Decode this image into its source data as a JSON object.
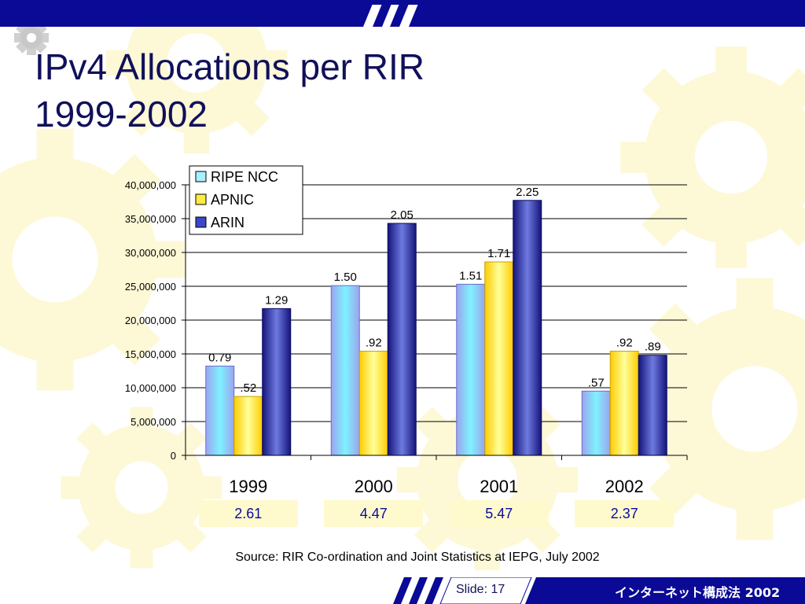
{
  "slide": {
    "title_line1": "IPv4 Allocations per RIR",
    "title_line2": "1999-2002",
    "source": "Source: RIR Co-ordination and Joint Statistics at IEPG,  July 2002",
    "slide_number": "Slide: 17",
    "footer_text": "インターネット構成法 2002",
    "colors": {
      "title": "#10105a",
      "top_bar": "#0a0a96",
      "totals_bg": "#fffacd",
      "totals_text": "#0a0aa0"
    }
  },
  "chart_data": {
    "type": "bar",
    "categories": [
      "1999",
      "2000",
      "2001",
      "2002"
    ],
    "ylim": [
      0,
      40000000
    ],
    "yticks": [
      {
        "value": 0,
        "label": "0"
      },
      {
        "value": 5000000,
        "label": "5,000,000"
      },
      {
        "value": 10000000,
        "label": "10,000,000"
      },
      {
        "value": 15000000,
        "label": "15,000,000"
      },
      {
        "value": 20000000,
        "label": "20,000,000"
      },
      {
        "value": 25000000,
        "label": "25,000,000"
      },
      {
        "value": 30000000,
        "label": "30,000,000"
      },
      {
        "value": 35000000,
        "label": "35,000,000"
      },
      {
        "value": 40000000,
        "label": "40,000,000"
      }
    ],
    "grid": true,
    "legend_position": "top-left",
    "series": [
      {
        "name": "RIPE NCC",
        "color": "#a9b4f5",
        "values": [
          13200000,
          25100000,
          25300000,
          9500000
        ],
        "labels": [
          "0.79",
          "1.50",
          "1.51",
          ".57"
        ]
      },
      {
        "name": "APNIC",
        "color": "#ffd700",
        "values": [
          8700000,
          15400000,
          28600000,
          15400000
        ],
        "labels": [
          ".52",
          ".92",
          "1.71",
          ".92"
        ]
      },
      {
        "name": "ARIN",
        "color": "#2828a0",
        "values": [
          21700000,
          34300000,
          37700000,
          14800000
        ],
        "labels": [
          "1.29",
          "2.05",
          "2.25",
          ".89"
        ]
      }
    ],
    "totals": [
      "2.61",
      "4.47",
      "5.47",
      "2.37"
    ]
  }
}
